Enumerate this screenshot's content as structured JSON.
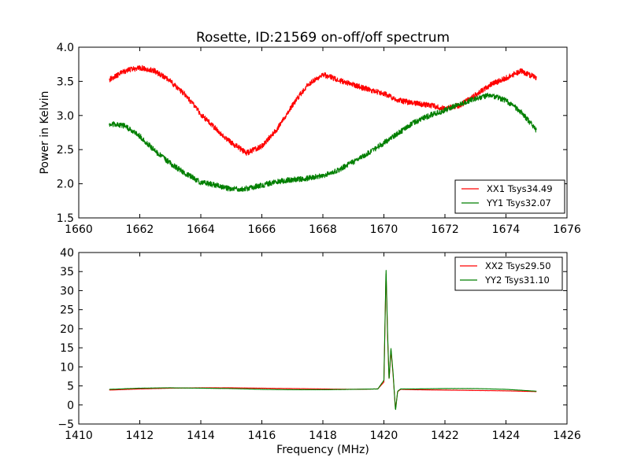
{
  "chart_data": [
    {
      "type": "line",
      "title": "Rosette, ID:21569 on-off/off spectrum",
      "xlabel": "",
      "ylabel": "Power in Kelvin",
      "xlim": [
        1660,
        1676
      ],
      "ylim": [
        1.5,
        4.0
      ],
      "xticks": [
        1660,
        1662,
        1664,
        1666,
        1668,
        1670,
        1672,
        1674,
        1676
      ],
      "yticks": [
        1.5,
        2.0,
        2.5,
        3.0,
        3.5,
        4.0
      ],
      "xtick_labels": [
        "1660",
        "1662",
        "1664",
        "1666",
        "1668",
        "1670",
        "1672",
        "1674",
        "1676"
      ],
      "ytick_labels": [
        "1.5",
        "2.0",
        "2.5",
        "3.0",
        "3.5",
        "4.0"
      ],
      "grid": false,
      "legend_position": "lower-right",
      "series": [
        {
          "name": "XX1 Tsys34.49",
          "color": "#ff0000",
          "noise": 0.04,
          "x": [
            1661.0,
            1661.5,
            1662.0,
            1662.5,
            1663.0,
            1663.5,
            1664.0,
            1664.5,
            1665.0,
            1665.5,
            1666.0,
            1666.5,
            1667.0,
            1667.5,
            1668.0,
            1668.5,
            1669.0,
            1669.5,
            1670.0,
            1670.5,
            1671.0,
            1671.5,
            1672.0,
            1672.5,
            1673.0,
            1673.5,
            1674.0,
            1674.5,
            1675.0
          ],
          "y": [
            3.52,
            3.65,
            3.7,
            3.65,
            3.5,
            3.3,
            3.02,
            2.8,
            2.6,
            2.45,
            2.55,
            2.8,
            3.15,
            3.45,
            3.6,
            3.52,
            3.45,
            3.38,
            3.32,
            3.22,
            3.18,
            3.15,
            3.1,
            3.15,
            3.3,
            3.45,
            3.55,
            3.65,
            3.55
          ]
        },
        {
          "name": "YY1 Tsys32.07",
          "color": "#007f00",
          "noise": 0.04,
          "x": [
            1661.0,
            1661.5,
            1662.0,
            1662.5,
            1663.0,
            1663.5,
            1664.0,
            1664.5,
            1665.0,
            1665.5,
            1666.0,
            1666.5,
            1667.0,
            1667.5,
            1668.0,
            1668.5,
            1669.0,
            1669.5,
            1670.0,
            1670.5,
            1671.0,
            1671.5,
            1672.0,
            1672.5,
            1673.0,
            1673.5,
            1674.0,
            1674.5,
            1675.0
          ],
          "y": [
            2.88,
            2.85,
            2.7,
            2.48,
            2.3,
            2.15,
            2.02,
            1.98,
            1.92,
            1.93,
            1.98,
            2.03,
            2.06,
            2.08,
            2.12,
            2.2,
            2.32,
            2.45,
            2.6,
            2.75,
            2.9,
            3.0,
            3.08,
            3.17,
            3.25,
            3.3,
            3.22,
            3.05,
            2.78
          ]
        }
      ]
    },
    {
      "type": "line",
      "title": "",
      "xlabel": "Frequency (MHz)",
      "ylabel": "",
      "xlim": [
        1410,
        1426
      ],
      "ylim": [
        -5,
        40
      ],
      "xticks": [
        1410,
        1412,
        1414,
        1416,
        1418,
        1420,
        1422,
        1424,
        1426
      ],
      "yticks": [
        -5,
        0,
        5,
        10,
        15,
        20,
        25,
        30,
        35,
        40
      ],
      "xtick_labels": [
        "1410",
        "1412",
        "1414",
        "1416",
        "1418",
        "1420",
        "1422",
        "1424",
        "1426"
      ],
      "ytick_labels": [
        "−5",
        "0",
        "5",
        "10",
        "15",
        "20",
        "25",
        "30",
        "35",
        "40"
      ],
      "grid": false,
      "legend_position": "top-right",
      "series": [
        {
          "name": "XX2 Tsys29.50",
          "color": "#ff0000",
          "noise": 0.05,
          "x": [
            1411.0,
            1412.0,
            1413.0,
            1414.0,
            1415.0,
            1416.0,
            1417.0,
            1418.0,
            1419.0,
            1419.8,
            1420.0,
            1420.07,
            1420.12,
            1420.17,
            1420.23,
            1420.3,
            1420.38,
            1420.45,
            1420.55,
            1421.0,
            1422.0,
            1423.0,
            1424.0,
            1425.0
          ],
          "y": [
            3.9,
            4.2,
            4.4,
            4.5,
            4.5,
            4.4,
            4.3,
            4.2,
            4.1,
            4.2,
            6.0,
            35.0,
            18.0,
            6.5,
            14.5,
            8.0,
            -1.2,
            3.5,
            4.1,
            4.0,
            3.9,
            3.8,
            3.7,
            3.5
          ]
        },
        {
          "name": "YY2 Tsys31.10",
          "color": "#007f00",
          "noise": 0.05,
          "x": [
            1411.0,
            1412.0,
            1413.0,
            1414.0,
            1415.0,
            1416.0,
            1417.0,
            1418.0,
            1419.0,
            1419.8,
            1420.0,
            1420.07,
            1420.12,
            1420.17,
            1420.23,
            1420.3,
            1420.38,
            1420.45,
            1420.55,
            1421.0,
            1422.0,
            1423.0,
            1424.0,
            1425.0
          ],
          "y": [
            4.1,
            4.4,
            4.5,
            4.4,
            4.3,
            4.1,
            4.0,
            4.0,
            4.1,
            4.2,
            6.5,
            36.0,
            19.0,
            6.5,
            15.0,
            8.5,
            -1.5,
            3.6,
            4.2,
            4.2,
            4.3,
            4.3,
            4.1,
            3.6
          ]
        }
      ]
    }
  ]
}
